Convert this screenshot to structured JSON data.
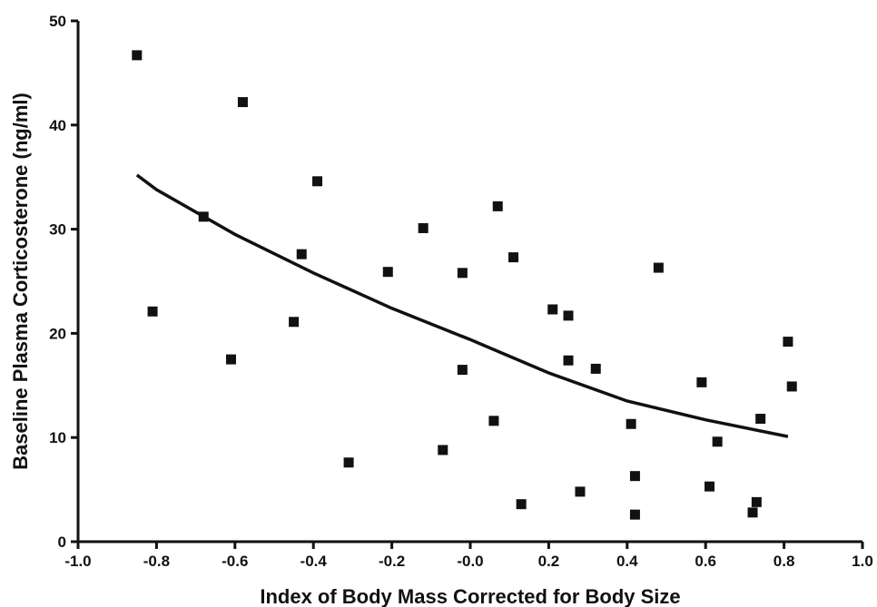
{
  "chart_data": {
    "type": "scatter",
    "title": "",
    "xlabel": "Index of Body Mass Corrected for Body Size",
    "ylabel": "Baseline Plasma Corticosterone (ng/ml)",
    "xlim": [
      -1.0,
      1.0
    ],
    "ylim": [
      0,
      50
    ],
    "x_ticks": [
      -1.0,
      -0.8,
      -0.6,
      -0.4,
      -0.2,
      0.0,
      0.2,
      0.4,
      0.6,
      0.8,
      1.0
    ],
    "x_tick_labels": [
      "-1.0",
      "-0.8",
      "-0.6",
      "-0.4",
      "-0.2",
      "-0.0",
      "0.2",
      "0.4",
      "0.6",
      "0.8",
      "1.0"
    ],
    "y_ticks": [
      0,
      10,
      20,
      30,
      40,
      50
    ],
    "y_tick_labels": [
      "0",
      "10",
      "20",
      "30",
      "40",
      "50"
    ],
    "grid": false,
    "legend": "none",
    "marker": "square",
    "color": "#111111",
    "points": [
      {
        "x": -0.85,
        "y": 46.7
      },
      {
        "x": -0.81,
        "y": 22.1
      },
      {
        "x": -0.68,
        "y": 31.2
      },
      {
        "x": -0.61,
        "y": 17.5
      },
      {
        "x": -0.58,
        "y": 42.2
      },
      {
        "x": -0.45,
        "y": 21.1
      },
      {
        "x": -0.43,
        "y": 27.6
      },
      {
        "x": -0.39,
        "y": 34.6
      },
      {
        "x": -0.31,
        "y": 7.6
      },
      {
        "x": -0.21,
        "y": 25.9
      },
      {
        "x": -0.12,
        "y": 30.1
      },
      {
        "x": -0.07,
        "y": 8.8
      },
      {
        "x": -0.02,
        "y": 25.8
      },
      {
        "x": -0.02,
        "y": 16.5
      },
      {
        "x": 0.06,
        "y": 11.6
      },
      {
        "x": 0.07,
        "y": 32.2
      },
      {
        "x": 0.11,
        "y": 27.3
      },
      {
        "x": 0.13,
        "y": 3.6
      },
      {
        "x": 0.21,
        "y": 22.3
      },
      {
        "x": 0.25,
        "y": 21.7
      },
      {
        "x": 0.25,
        "y": 17.4
      },
      {
        "x": 0.28,
        "y": 4.8
      },
      {
        "x": 0.32,
        "y": 16.6
      },
      {
        "x": 0.41,
        "y": 11.3
      },
      {
        "x": 0.42,
        "y": 6.3
      },
      {
        "x": 0.42,
        "y": 2.6
      },
      {
        "x": 0.48,
        "y": 26.3
      },
      {
        "x": 0.59,
        "y": 15.3
      },
      {
        "x": 0.61,
        "y": 5.3
      },
      {
        "x": 0.63,
        "y": 9.6
      },
      {
        "x": 0.72,
        "y": 2.8
      },
      {
        "x": 0.73,
        "y": 3.8
      },
      {
        "x": 0.74,
        "y": 11.8
      },
      {
        "x": 0.81,
        "y": 19.2
      },
      {
        "x": 0.82,
        "y": 14.9
      }
    ],
    "fit_curve": {
      "type": "exponential",
      "x": [
        -0.85,
        -0.8,
        -0.6,
        -0.4,
        -0.2,
        0.0,
        0.2,
        0.4,
        0.6,
        0.81
      ],
      "y": [
        35.2,
        33.8,
        29.5,
        25.8,
        22.4,
        19.4,
        16.2,
        13.5,
        11.7,
        10.1
      ]
    }
  }
}
